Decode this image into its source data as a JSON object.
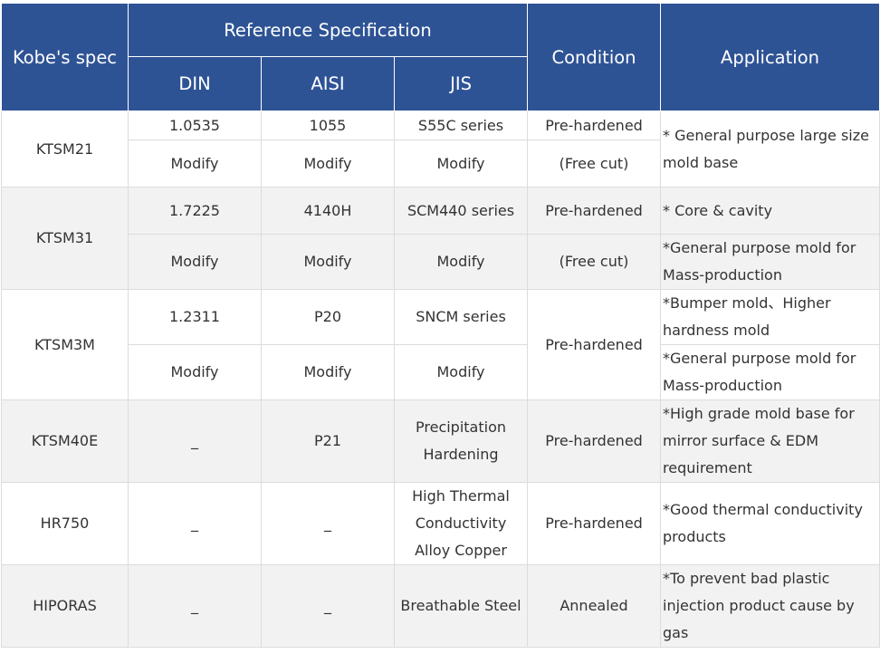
{
  "header": {
    "kobe_spec": "Kobe's spec",
    "reference": "Reference Specification",
    "condition": "Condition",
    "application": "Application",
    "din": "DIN",
    "aisi": "AISI",
    "jis": "JIS"
  },
  "rows": [
    {
      "spec": "KTSM21",
      "sub": [
        {
          "din": "1.0535",
          "aisi": "1055",
          "jis": "S55C series",
          "condition": "Pre-hardened"
        },
        {
          "din": "Modify",
          "aisi": "Modify",
          "jis": "Modify",
          "condition": "(Free cut)"
        }
      ],
      "application": "* General purpose large size mold base"
    },
    {
      "spec": "KTSM31",
      "sub": [
        {
          "din": "1.7225",
          "aisi": "4140H",
          "jis": "SCM440 series",
          "condition": "Pre-hardened",
          "application": "* Core & cavity"
        },
        {
          "din": "Modify",
          "aisi": "Modify",
          "jis": "Modify",
          "condition": "(Free cut)",
          "application": "*General purpose mold for Mass-production"
        }
      ]
    },
    {
      "spec": "KTSM3M",
      "condition": "Pre-hardened",
      "sub": [
        {
          "din": "1.2311",
          "aisi": "P20",
          "jis": "SNCM series",
          "application": "*Bumper mold、Higher hardness mold"
        },
        {
          "din": "Modify",
          "aisi": "Modify",
          "jis": "Modify",
          "application": "*General purpose mold for Mass-production"
        }
      ]
    },
    {
      "spec": "KTSM40E",
      "din": "_",
      "aisi": "P21",
      "jis": "Precipitation Hardening",
      "condition": "Pre-hardened",
      "application": "*High grade mold base for mirror surface & EDM requirement"
    },
    {
      "spec": "HR750",
      "din": "_",
      "aisi": "_",
      "jis": "High Thermal Conductivity Alloy Copper",
      "condition": "Pre-hardened",
      "application": "*Good thermal conductivity products"
    },
    {
      "spec": "HIPORAS",
      "din": "_",
      "aisi": "_",
      "jis": "Breathable Steel",
      "condition": "Annealed",
      "application": "*To prevent bad plastic injection product cause by gas"
    }
  ],
  "colors": {
    "header_bg": "#2e5395",
    "header_text": "#ffffff",
    "stripe_bg": "#f2f2f2",
    "border": "#dcdcdc",
    "text": "#333333"
  }
}
